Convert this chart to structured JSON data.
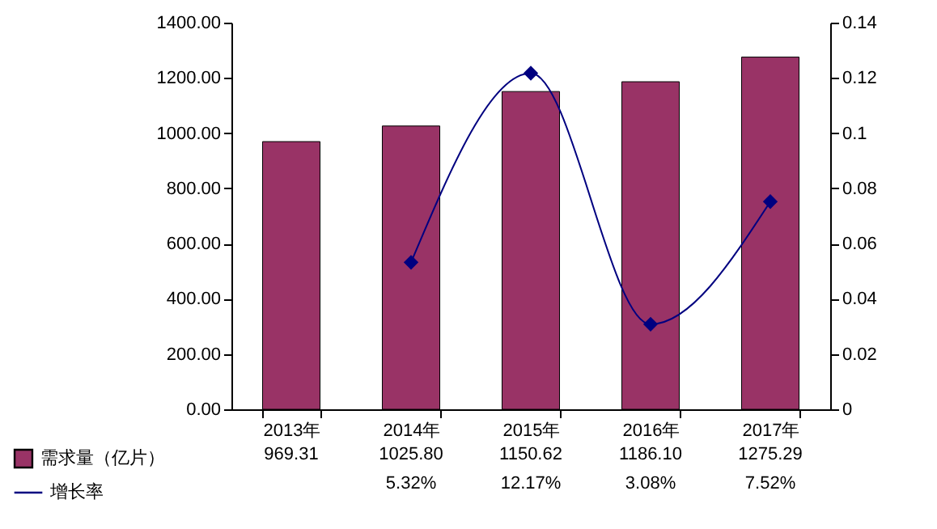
{
  "chart_data": {
    "type": "bar",
    "categories": [
      "2013年",
      "2014年",
      "2015年",
      "2016年",
      "2017年"
    ],
    "series": [
      {
        "name": "需求量（亿片）",
        "color": "#993366",
        "values": [
          969.31,
          1025.8,
          1150.62,
          1186.1,
          1275.29
        ],
        "value_labels": [
          "969.31",
          "1025.80",
          "1150.62",
          "1186.10",
          "1275.29"
        ]
      },
      {
        "name": "增长率",
        "type": "line",
        "axis": "y2",
        "color": "#000080",
        "values": [
          null,
          0.0532,
          0.1217,
          0.0308,
          0.0752
        ],
        "value_labels": [
          null,
          "5.32%",
          "12.17%",
          "3.08%",
          "7.52%"
        ]
      }
    ],
    "ylim": [
      0,
      1400
    ],
    "yticks": [
      {
        "value": 0,
        "label": "0.00"
      },
      {
        "value": 200,
        "label": "200.00"
      },
      {
        "value": 400,
        "label": "400.00"
      },
      {
        "value": 600,
        "label": "600.00"
      },
      {
        "value": 800,
        "label": "800.00"
      },
      {
        "value": 1000,
        "label": "1000.00"
      },
      {
        "value": 1200,
        "label": "1200.00"
      },
      {
        "value": 1400,
        "label": "1400.00"
      }
    ],
    "y2lim": [
      0,
      0.14
    ],
    "y2ticks": [
      0,
      0.02,
      0.04,
      0.06,
      0.08,
      0.1,
      0.12,
      0.14
    ],
    "marker": "diamond",
    "legend": "bottom left"
  }
}
